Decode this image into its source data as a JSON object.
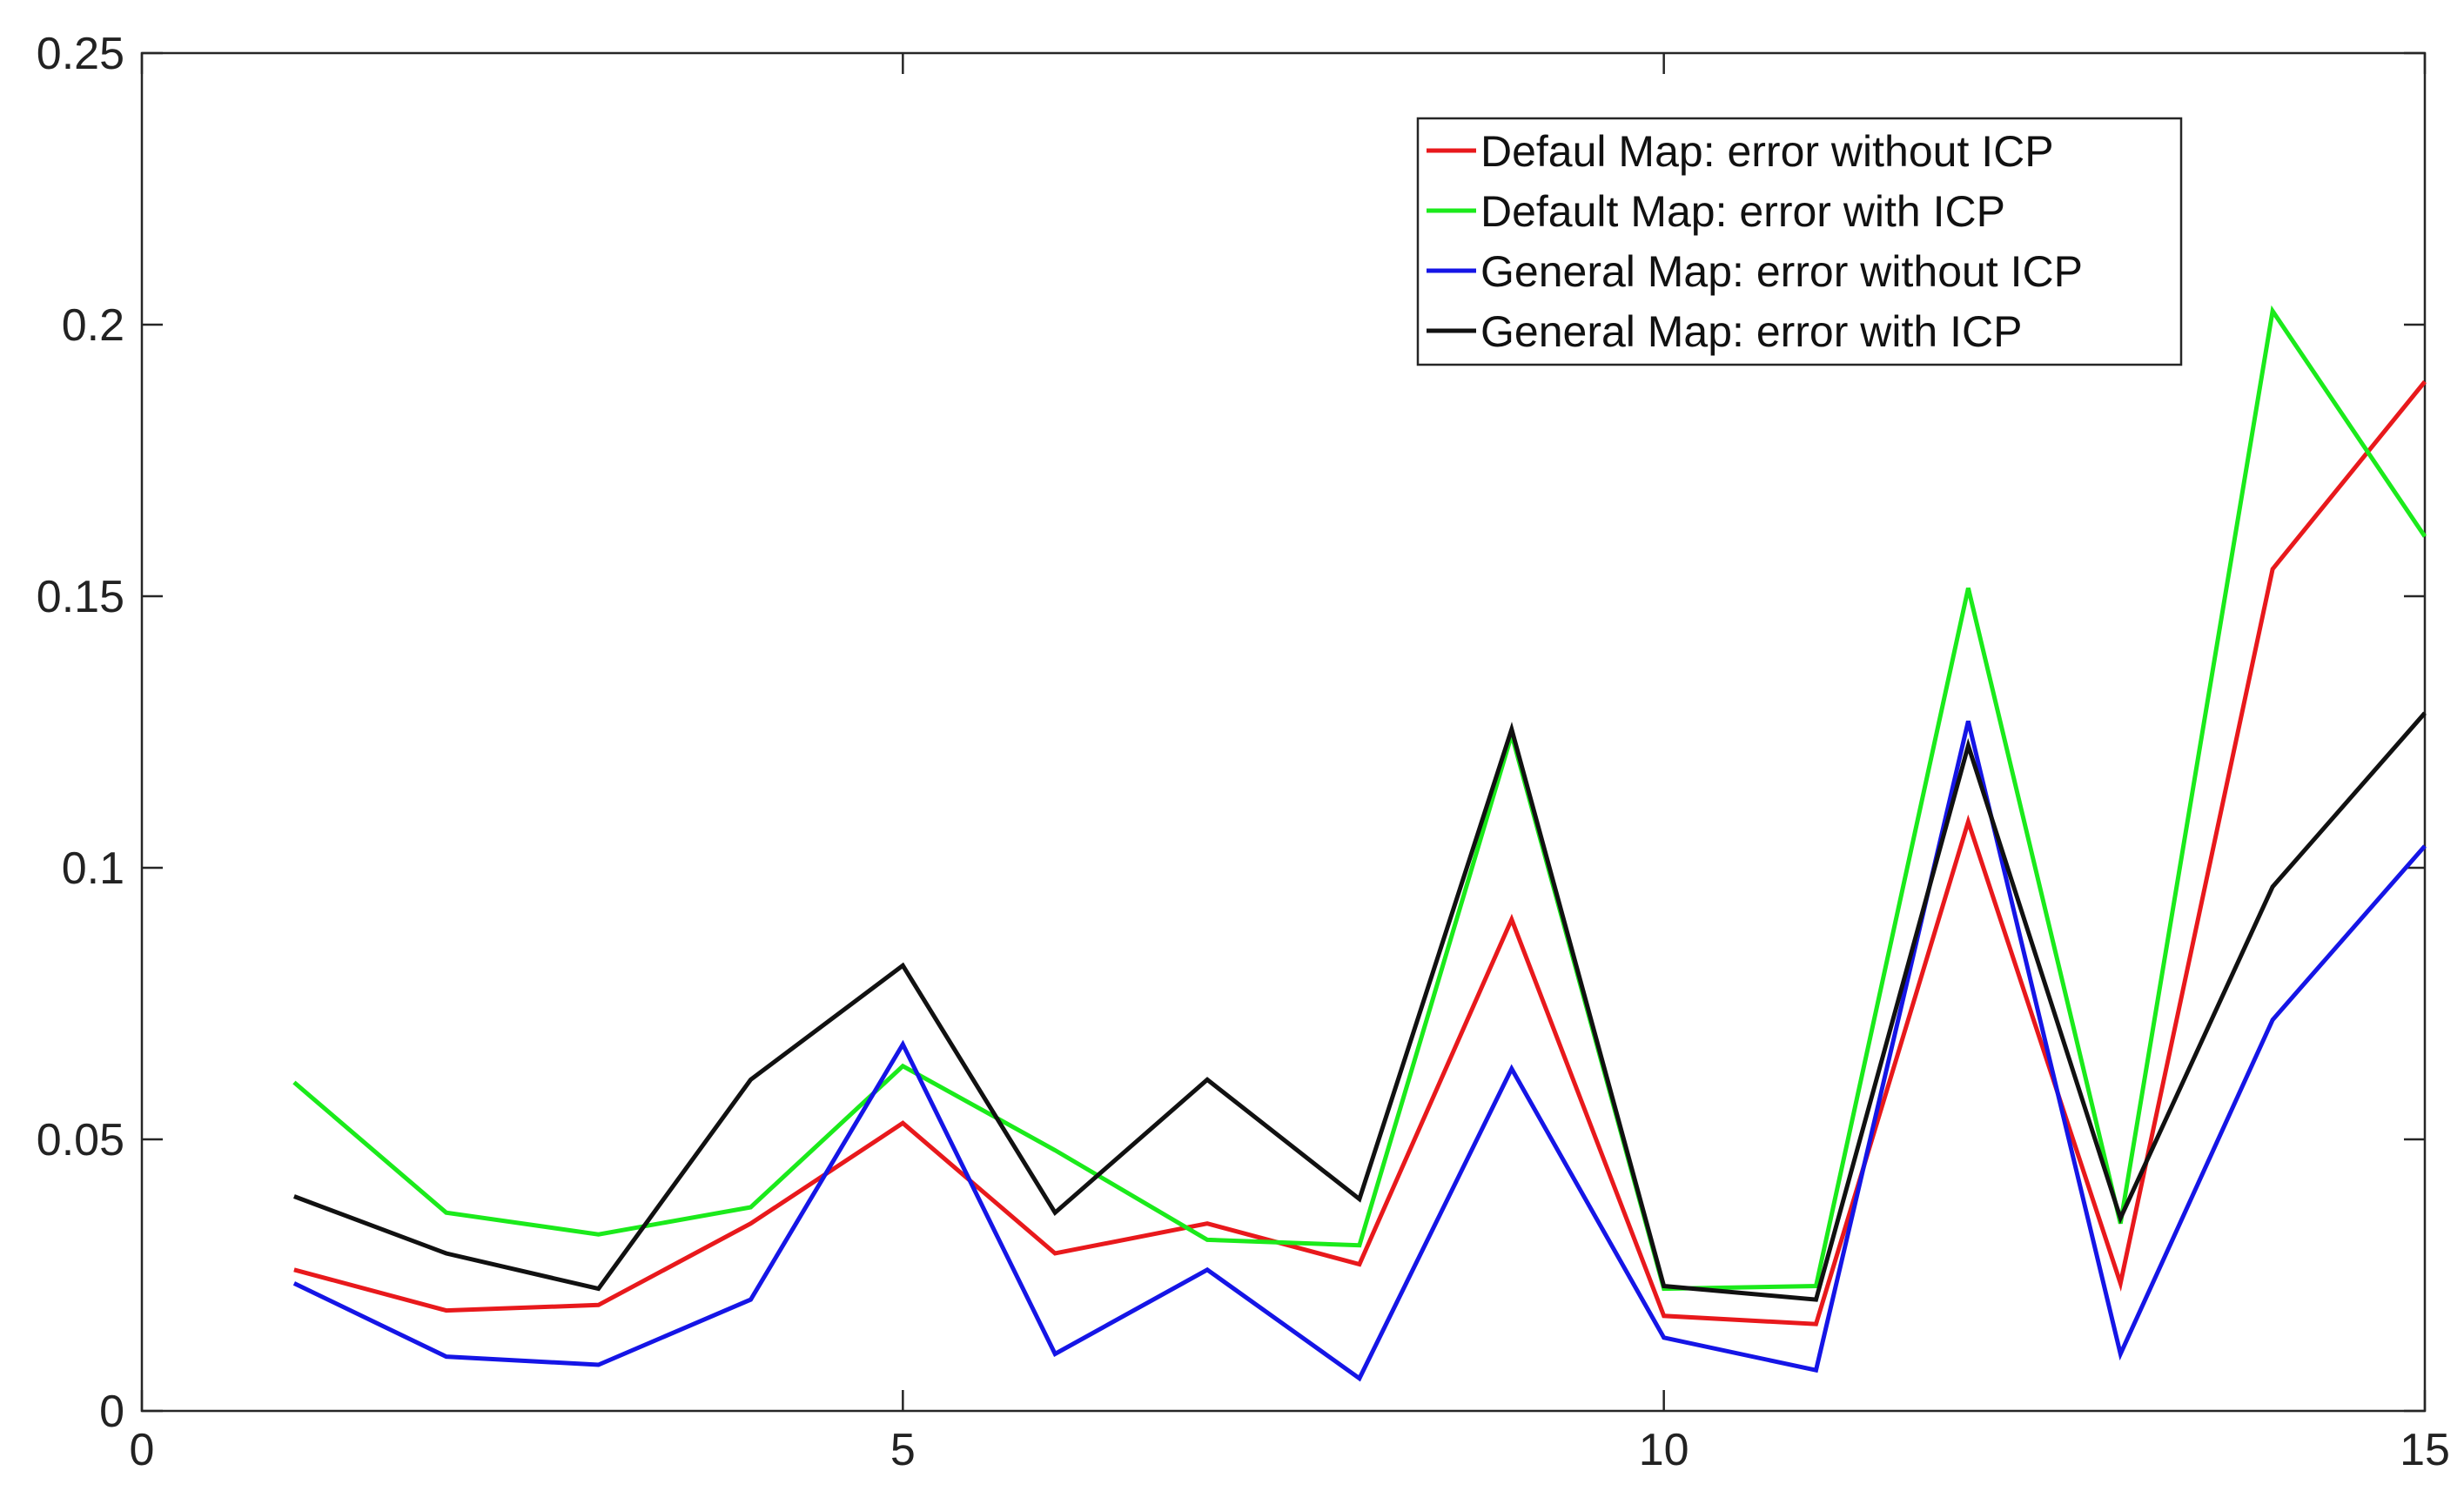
{
  "chart_data": {
    "type": "line",
    "title": "",
    "xlabel": "",
    "ylabel": "",
    "xlim": [
      0,
      15
    ],
    "ylim": [
      0,
      0.25
    ],
    "xticks": [
      0,
      5,
      10,
      15
    ],
    "yticks": [
      0,
      0.05,
      0.1,
      0.15,
      0.2,
      0.25
    ],
    "xtick_labels": [
      "0",
      "5",
      "10",
      "15"
    ],
    "ytick_labels": [
      "0",
      "0.05",
      "0.1",
      "0.15",
      "0.2",
      "0.25"
    ],
    "grid": false,
    "legend_position": "top-right",
    "x": [
      1,
      2,
      3,
      4,
      5,
      6,
      7,
      8,
      9,
      10,
      11,
      12,
      13,
      14,
      15
    ],
    "series": [
      {
        "name": "Defaul Map: error without ICP",
        "color": "#e8191c",
        "values": [
          0.026,
          0.0185,
          0.0195,
          0.0345,
          0.053,
          0.029,
          0.0345,
          0.027,
          0.0905,
          0.0175,
          0.016,
          0.1085,
          0.0235,
          0.155,
          0.1895
        ]
      },
      {
        "name": "Default Map: error with ICP",
        "color": "#1bea1b",
        "values": [
          0.0605,
          0.0365,
          0.0325,
          0.0375,
          0.0635,
          0.048,
          0.0315,
          0.0305,
          0.1245,
          0.0225,
          0.023,
          0.1515,
          0.0345,
          0.2025,
          0.161
        ]
      },
      {
        "name": "General Map: error without ICP",
        "color": "#1515e6",
        "values": [
          0.0235,
          0.01,
          0.0085,
          0.0205,
          0.0675,
          0.0105,
          0.026,
          0.006,
          0.063,
          0.0135,
          0.0075,
          0.127,
          0.0105,
          0.072,
          0.104
        ]
      },
      {
        "name": "General Map: error with ICP",
        "color": "#111111",
        "values": [
          0.0395,
          0.029,
          0.0225,
          0.061,
          0.082,
          0.0365,
          0.061,
          0.039,
          0.1255,
          0.023,
          0.0205,
          0.1225,
          0.0355,
          0.0965,
          0.1285
        ]
      }
    ]
  }
}
